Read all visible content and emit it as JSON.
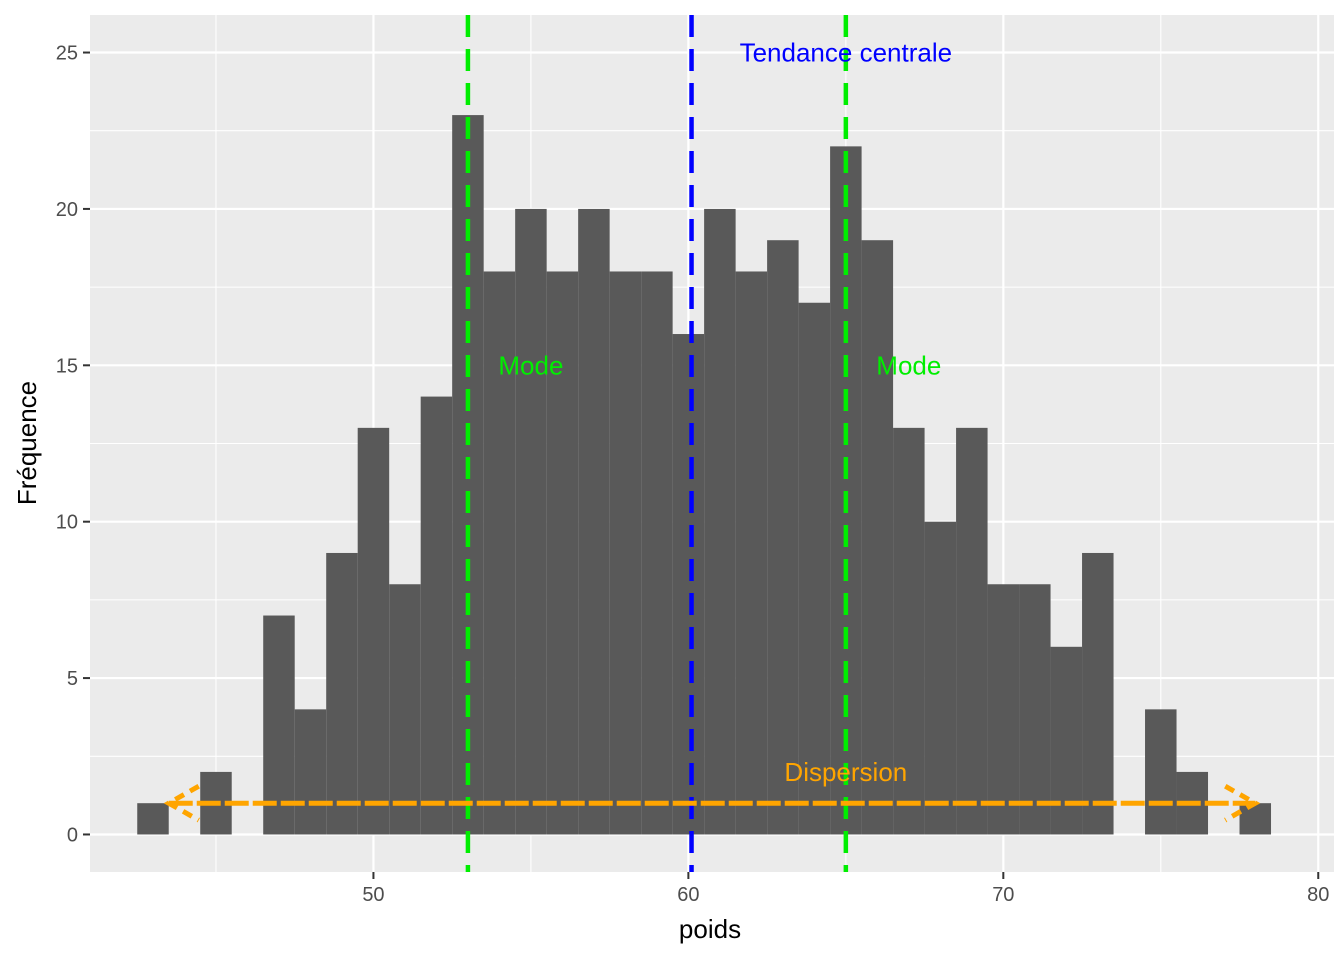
{
  "chart_data": {
    "type": "bar",
    "subtype": "histogram",
    "xlabel": "poids",
    "ylabel": "Fréquence",
    "xlim": [
      41,
      80.5
    ],
    "ylim": [
      -1.2,
      26.2
    ],
    "bin_width": 1,
    "x_ticks": [
      50,
      60,
      70,
      80
    ],
    "y_ticks": [
      0,
      5,
      10,
      15,
      20,
      25
    ],
    "grid": true,
    "background": "#ebebeb",
    "bar_color": "#595959",
    "bins": [
      {
        "x": 43,
        "count": 1
      },
      {
        "x": 45,
        "count": 2
      },
      {
        "x": 47,
        "count": 7
      },
      {
        "x": 48,
        "count": 4
      },
      {
        "x": 49,
        "count": 9
      },
      {
        "x": 50,
        "count": 13
      },
      {
        "x": 51,
        "count": 8
      },
      {
        "x": 52,
        "count": 14
      },
      {
        "x": 53,
        "count": 23
      },
      {
        "x": 54,
        "count": 18
      },
      {
        "x": 55,
        "count": 20
      },
      {
        "x": 56,
        "count": 18
      },
      {
        "x": 57,
        "count": 20
      },
      {
        "x": 58,
        "count": 18
      },
      {
        "x": 59,
        "count": 18
      },
      {
        "x": 60,
        "count": 16
      },
      {
        "x": 61,
        "count": 20
      },
      {
        "x": 62,
        "count": 18
      },
      {
        "x": 63,
        "count": 19
      },
      {
        "x": 64,
        "count": 17
      },
      {
        "x": 65,
        "count": 22
      },
      {
        "x": 66,
        "count": 19
      },
      {
        "x": 67,
        "count": 13
      },
      {
        "x": 68,
        "count": 10
      },
      {
        "x": 69,
        "count": 13
      },
      {
        "x": 70,
        "count": 8
      },
      {
        "x": 71,
        "count": 8
      },
      {
        "x": 72,
        "count": 6
      },
      {
        "x": 73,
        "count": 9
      },
      {
        "x": 75,
        "count": 4
      },
      {
        "x": 76,
        "count": 2
      },
      {
        "x": 78,
        "count": 1
      }
    ],
    "vlines": [
      {
        "x": 53,
        "color": "#00ee00",
        "style": "dashed"
      },
      {
        "x": 60.1,
        "color": "#0000ff",
        "style": "dashed"
      },
      {
        "x": 65,
        "color": "#00ee00",
        "style": "dashed"
      }
    ],
    "dispersion_arrow": {
      "x_start": 43.5,
      "x_end": 78,
      "y": 1,
      "color": "#ffa500",
      "style": "dashed",
      "double_headed": true
    },
    "annotations": [
      {
        "text": "Tendance centrale",
        "x": 65,
        "y": 25,
        "color": "#0000ff"
      },
      {
        "text": "Mode",
        "x": 55,
        "y": 15,
        "color": "#00ee00"
      },
      {
        "text": "Mode",
        "x": 67,
        "y": 15,
        "color": "#00ee00"
      },
      {
        "text": "Dispersion",
        "x": 65,
        "y": 2,
        "color": "#ffa500"
      }
    ]
  }
}
